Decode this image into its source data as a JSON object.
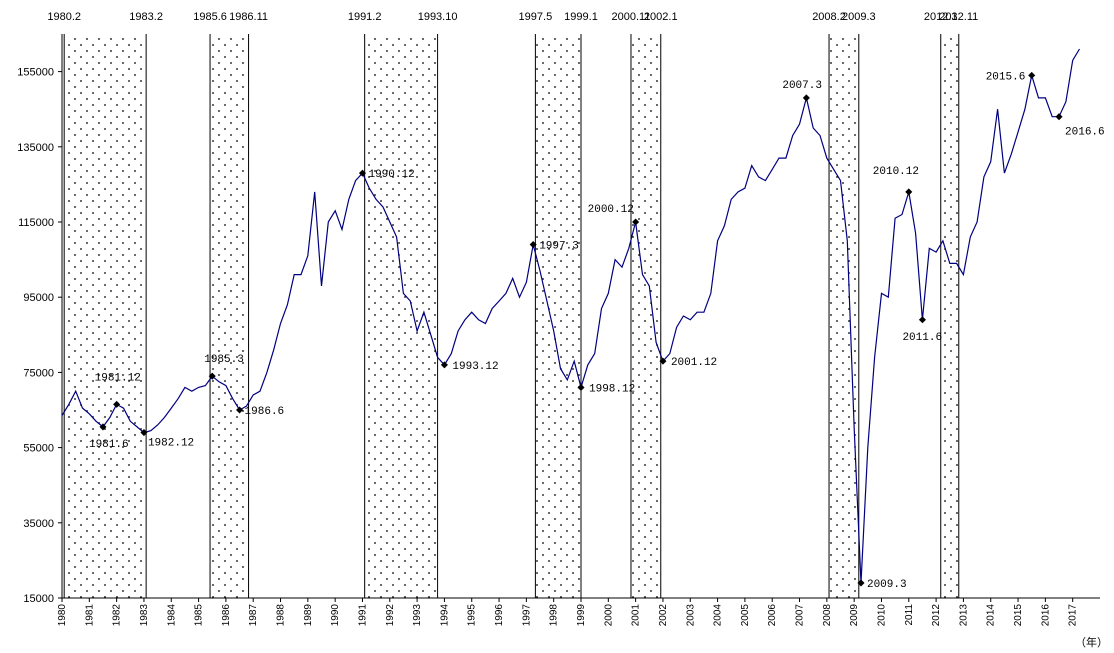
{
  "chart_data": {
    "type": "line",
    "title": "",
    "xlabel": "",
    "ylabel": "",
    "x_unit_label": "（年）",
    "ylim": [
      15000,
      165000
    ],
    "xlim": [
      1980,
      2018
    ],
    "y_ticks": [
      15000,
      35000,
      55000,
      75000,
      95000,
      115000,
      135000,
      155000
    ],
    "y_tick_labels": [
      "15000",
      "35000",
      "55000",
      "75000",
      "95000",
      "115000",
      "135000",
      "155000"
    ],
    "x_ticks": [
      "1980",
      "1981",
      "1982",
      "1983",
      "1984",
      "1985",
      "1986",
      "1987",
      "1988",
      "1989",
      "1990",
      "1991",
      "1992",
      "1993",
      "1994",
      "1995",
      "1996",
      "1997",
      "1998",
      "1999",
      "2000",
      "2001",
      "2002",
      "2003",
      "2004",
      "2005",
      "2006",
      "2007",
      "2008",
      "2009",
      "2010",
      "2011",
      "2012",
      "2013",
      "2014",
      "2015",
      "2016",
      "2017"
    ],
    "grid": false,
    "legend": "none",
    "line_color": "#000080",
    "shaded_periods": [
      {
        "start": "1980.2",
        "end": "1983.2",
        "start_num": 1980.08,
        "end_num": 1983.08
      },
      {
        "start": "1985.6",
        "end": "1986.11",
        "start_num": 1985.42,
        "end_num": 1986.83
      },
      {
        "start": "1991.2",
        "end": "1993.10",
        "start_num": 1991.08,
        "end_num": 1993.75
      },
      {
        "start": "1997.5",
        "end": "1999.1",
        "start_num": 1997.33,
        "end_num": 1999.0
      },
      {
        "start": "2000.11",
        "end": "2002.1",
        "start_num": 2000.83,
        "end_num": 2001.92
      },
      {
        "start": "2008.2",
        "end": "2009.3",
        "start_num": 2008.08,
        "end_num": 2009.17
      },
      {
        "start": "2012.3",
        "end": "2012.11",
        "start_num": 2012.17,
        "end_num": 2012.83
      }
    ],
    "period_boundary_labels": [
      {
        "label": "1980.2",
        "x": 1980.08
      },
      {
        "label": "1983.2",
        "x": 1983.08
      },
      {
        "label": "1985.6",
        "x": 1985.42
      },
      {
        "label": "1986.11",
        "x": 1986.83
      },
      {
        "label": "1991.2",
        "x": 1991.08
      },
      {
        "label": "1993.10",
        "x": 1993.75
      },
      {
        "label": "1997.5",
        "x": 1997.33
      },
      {
        "label": "1999.1",
        "x": 1999.0
      },
      {
        "label": "2000.11",
        "x": 2000.83
      },
      {
        "label": "2002.1",
        "x": 2001.92
      },
      {
        "label": "2008.2",
        "x": 2008.08
      },
      {
        "label": "2009.3",
        "x": 2009.17
      },
      {
        "label": "2012.3",
        "x": 2012.17
      },
      {
        "label": "2012.11",
        "x": 2012.83
      }
    ],
    "series": [
      {
        "points": [
          [
            1980.0,
            63500
          ],
          [
            1980.25,
            66500
          ],
          [
            1980.5,
            70000
          ],
          [
            1980.75,
            65500
          ],
          [
            1981.0,
            64000
          ],
          [
            1981.25,
            62000
          ],
          [
            1981.5,
            60500
          ],
          [
            1981.75,
            63000
          ],
          [
            1982.0,
            66500
          ],
          [
            1982.25,
            65500
          ],
          [
            1982.5,
            62000
          ],
          [
            1982.75,
            60500
          ],
          [
            1983.0,
            59000
          ],
          [
            1983.25,
            59500
          ],
          [
            1983.5,
            61000
          ],
          [
            1983.75,
            63000
          ],
          [
            1984.0,
            65500
          ],
          [
            1984.25,
            68000
          ],
          [
            1984.5,
            71000
          ],
          [
            1984.75,
            70000
          ],
          [
            1985.0,
            71000
          ],
          [
            1985.25,
            71500
          ],
          [
            1985.5,
            74000
          ],
          [
            1985.75,
            72500
          ],
          [
            1986.0,
            71500
          ],
          [
            1986.25,
            68000
          ],
          [
            1986.5,
            65000
          ],
          [
            1986.75,
            66000
          ],
          [
            1987.0,
            69000
          ],
          [
            1987.25,
            70000
          ],
          [
            1987.5,
            75000
          ],
          [
            1987.75,
            81000
          ],
          [
            1988.0,
            88000
          ],
          [
            1988.25,
            93000
          ],
          [
            1988.5,
            101000
          ],
          [
            1988.75,
            101000
          ],
          [
            1989.0,
            106000
          ],
          [
            1989.25,
            123000
          ],
          [
            1989.5,
            98000
          ],
          [
            1989.75,
            115000
          ],
          [
            1990.0,
            118000
          ],
          [
            1990.25,
            113000
          ],
          [
            1990.5,
            121000
          ],
          [
            1990.75,
            126000
          ],
          [
            1991.0,
            128000
          ],
          [
            1991.25,
            124000
          ],
          [
            1991.5,
            121000
          ],
          [
            1991.75,
            119000
          ],
          [
            1992.0,
            115000
          ],
          [
            1992.25,
            111000
          ],
          [
            1992.5,
            96000
          ],
          [
            1992.75,
            94000
          ],
          [
            1993.0,
            86000
          ],
          [
            1993.25,
            91000
          ],
          [
            1993.5,
            85000
          ],
          [
            1993.75,
            79000
          ],
          [
            1994.0,
            77000
          ],
          [
            1994.25,
            80000
          ],
          [
            1994.5,
            86000
          ],
          [
            1994.75,
            89000
          ],
          [
            1995.0,
            91000
          ],
          [
            1995.25,
            89000
          ],
          [
            1995.5,
            88000
          ],
          [
            1995.75,
            92000
          ],
          [
            1996.0,
            94000
          ],
          [
            1996.25,
            96000
          ],
          [
            1996.5,
            100000
          ],
          [
            1996.75,
            95000
          ],
          [
            1997.0,
            99000
          ],
          [
            1997.25,
            109000
          ],
          [
            1997.5,
            102000
          ],
          [
            1997.75,
            94000
          ],
          [
            1998.0,
            86000
          ],
          [
            1998.25,
            76000
          ],
          [
            1998.5,
            73000
          ],
          [
            1998.75,
            78000
          ],
          [
            1999.0,
            71000
          ],
          [
            1999.25,
            77000
          ],
          [
            1999.5,
            80000
          ],
          [
            1999.75,
            92000
          ],
          [
            2000.0,
            96000
          ],
          [
            2000.25,
            105000
          ],
          [
            2000.5,
            103000
          ],
          [
            2000.75,
            108000
          ],
          [
            2001.0,
            115000
          ],
          [
            2001.25,
            101000
          ],
          [
            2001.5,
            98000
          ],
          [
            2001.75,
            83000
          ],
          [
            2002.0,
            78000
          ],
          [
            2002.25,
            80000
          ],
          [
            2002.5,
            87000
          ],
          [
            2002.75,
            90000
          ],
          [
            2003.0,
            89000
          ],
          [
            2003.25,
            91000
          ],
          [
            2003.5,
            91000
          ],
          [
            2003.75,
            96000
          ],
          [
            2004.0,
            110000
          ],
          [
            2004.25,
            114000
          ],
          [
            2004.5,
            121000
          ],
          [
            2004.75,
            123000
          ],
          [
            2005.0,
            124000
          ],
          [
            2005.25,
            130000
          ],
          [
            2005.5,
            127000
          ],
          [
            2005.75,
            126000
          ],
          [
            2006.0,
            129000
          ],
          [
            2006.25,
            132000
          ],
          [
            2006.5,
            132000
          ],
          [
            2006.75,
            138000
          ],
          [
            2007.0,
            141000
          ],
          [
            2007.25,
            148000
          ],
          [
            2007.5,
            140000
          ],
          [
            2007.75,
            138000
          ],
          [
            2008.0,
            132000
          ],
          [
            2008.25,
            129000
          ],
          [
            2008.5,
            126000
          ],
          [
            2008.75,
            110000
          ],
          [
            2009.0,
            60000
          ],
          [
            2009.25,
            19000
          ],
          [
            2009.5,
            55000
          ],
          [
            2009.75,
            79000
          ],
          [
            2010.0,
            96000
          ],
          [
            2010.25,
            95000
          ],
          [
            2010.5,
            116000
          ],
          [
            2010.75,
            117000
          ],
          [
            2011.0,
            123000
          ],
          [
            2011.25,
            112000
          ],
          [
            2011.5,
            89000
          ],
          [
            2011.75,
            108000
          ],
          [
            2012.0,
            107000
          ],
          [
            2012.25,
            110000
          ],
          [
            2012.5,
            104000
          ],
          [
            2012.75,
            104000
          ],
          [
            2013.0,
            101000
          ],
          [
            2013.25,
            111000
          ],
          [
            2013.5,
            115000
          ],
          [
            2013.75,
            127000
          ],
          [
            2014.0,
            131000
          ],
          [
            2014.25,
            145000
          ],
          [
            2014.5,
            128000
          ],
          [
            2014.75,
            133000
          ],
          [
            2015.0,
            139000
          ],
          [
            2015.25,
            145000
          ],
          [
            2015.5,
            154000
          ],
          [
            2015.75,
            148000
          ],
          [
            2016.0,
            148000
          ],
          [
            2016.25,
            143000
          ],
          [
            2016.5,
            143000
          ],
          [
            2016.75,
            147000
          ],
          [
            2017.0,
            158000
          ],
          [
            2017.25,
            161000
          ]
        ]
      }
    ],
    "annotations": [
      {
        "label": "1981.12",
        "x": 1982.0,
        "y": 66500,
        "dx": -22,
        "dy": -24
      },
      {
        "label": "1981.6",
        "x": 1981.5,
        "y": 60500,
        "dx": -14,
        "dy": 20
      },
      {
        "label": "1982.12",
        "x": 1983.0,
        "y": 59000,
        "dx": 4,
        "dy": 13
      },
      {
        "label": "1985.3",
        "x": 1985.5,
        "y": 74000,
        "dx": -8,
        "dy": -14
      },
      {
        "label": "1986.6",
        "x": 1986.5,
        "y": 65000,
        "dx": 5,
        "dy": 4
      },
      {
        "label": "1990.12",
        "x": 1991.0,
        "y": 128000,
        "dx": 6,
        "dy": 4
      },
      {
        "label": "1993.12",
        "x": 1994.0,
        "y": 77000,
        "dx": 8,
        "dy": 4
      },
      {
        "label": "1997.3",
        "x": 1997.25,
        "y": 109000,
        "dx": 6,
        "dy": 4
      },
      {
        "label": "1998.12",
        "x": 1999.0,
        "y": 71000,
        "dx": 8,
        "dy": 4
      },
      {
        "label": "2000.12",
        "x": 2001.0,
        "y": 115000,
        "dx": -48,
        "dy": -10
      },
      {
        "label": "2001.12",
        "x": 2002.0,
        "y": 78000,
        "dx": 8,
        "dy": 4
      },
      {
        "label": "2007.3",
        "x": 2007.25,
        "y": 148000,
        "dx": -24,
        "dy": -10
      },
      {
        "label": "2009.3",
        "x": 2009.25,
        "y": 19000,
        "dx": 6,
        "dy": 4
      },
      {
        "label": "2010.12",
        "x": 2011.0,
        "y": 123000,
        "dx": -36,
        "dy": -18
      },
      {
        "label": "2011.6",
        "x": 2011.5,
        "y": 89000,
        "dx": -20,
        "dy": 20
      },
      {
        "label": "2015.6",
        "x": 2015.5,
        "y": 154000,
        "dx": -46,
        "dy": 4
      },
      {
        "label": "2016.6",
        "x": 2016.5,
        "y": 143000,
        "dx": 6,
        "dy": 18
      }
    ]
  }
}
